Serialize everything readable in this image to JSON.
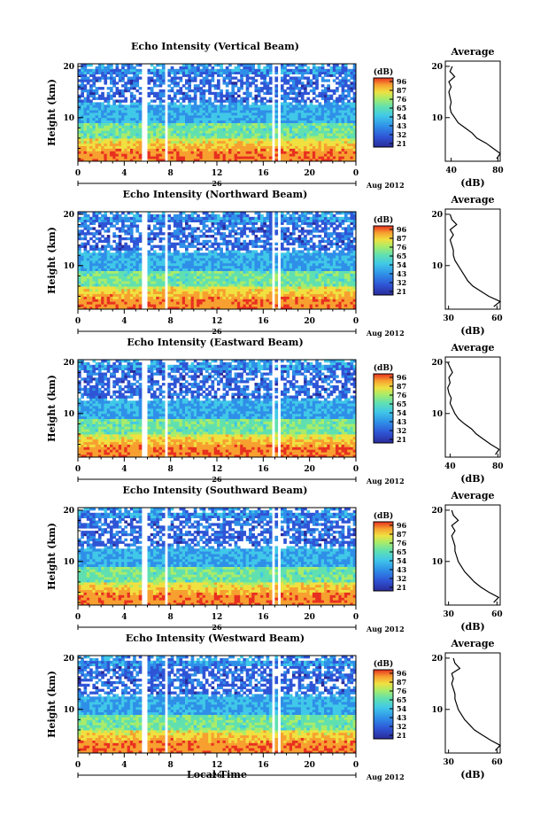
{
  "chart_data": {
    "type": "heatmap",
    "panels": [
      {
        "title": "Echo Intensity (Vertical Beam)",
        "cbar_label": "(dB)",
        "cbar_ticks": [
          "96",
          "87",
          "76",
          "65",
          "54",
          "43",
          "32",
          "21"
        ],
        "avg_title": "Average",
        "avg_xlabel": "(dB)",
        "avg_xticks": [
          "40",
          "80"
        ],
        "avg_xlim": [
          35,
          82
        ],
        "avg_profile": [
          [
            79,
            2
          ],
          [
            82,
            3
          ],
          [
            76,
            4
          ],
          [
            70,
            5
          ],
          [
            62,
            6
          ],
          [
            58,
            7
          ],
          [
            52,
            8
          ],
          [
            46,
            9
          ],
          [
            43,
            10
          ],
          [
            40,
            11
          ],
          [
            39,
            12
          ],
          [
            40,
            13
          ],
          [
            39,
            14
          ],
          [
            38,
            15
          ],
          [
            40,
            16
          ],
          [
            38,
            17
          ],
          [
            43,
            18
          ],
          [
            39,
            19
          ],
          [
            41,
            20
          ]
        ]
      },
      {
        "title": "Echo Intensity (Northward Beam)",
        "cbar_label": "(dB)",
        "cbar_ticks": [
          "96",
          "87",
          "76",
          "65",
          "54",
          "43",
          "32",
          "21"
        ],
        "avg_title": "Average",
        "avg_xlabel": "(dB)",
        "avg_xticks": [
          "30",
          "60"
        ],
        "avg_xlim": [
          28,
          62
        ],
        "avg_profile": [
          [
            58,
            2
          ],
          [
            62,
            3
          ],
          [
            55,
            4
          ],
          [
            50,
            5
          ],
          [
            45,
            6
          ],
          [
            42,
            7
          ],
          [
            40,
            8
          ],
          [
            38,
            9
          ],
          [
            36,
            10
          ],
          [
            34,
            11
          ],
          [
            33,
            12
          ],
          [
            33,
            13
          ],
          [
            32,
            14
          ],
          [
            31,
            15
          ],
          [
            33,
            16
          ],
          [
            31,
            17
          ],
          [
            35,
            18
          ],
          [
            32,
            19
          ],
          [
            31,
            20
          ]
        ]
      },
      {
        "title": "Echo Intensity (Eastward Beam)",
        "cbar_label": "(dB)",
        "cbar_ticks": [
          "96",
          "87",
          "76",
          "65",
          "54",
          "43",
          "32",
          "21"
        ],
        "avg_title": "Average",
        "avg_xlabel": "(dB)",
        "avg_xticks": [
          "40",
          "80"
        ],
        "avg_xlim": [
          36,
          82
        ],
        "avg_profile": [
          [
            78,
            2
          ],
          [
            81,
            3
          ],
          [
            74,
            4
          ],
          [
            68,
            5
          ],
          [
            62,
            6
          ],
          [
            58,
            7
          ],
          [
            52,
            8
          ],
          [
            47,
            9
          ],
          [
            44,
            10
          ],
          [
            42,
            11
          ],
          [
            40,
            12
          ],
          [
            41,
            13
          ],
          [
            39,
            14
          ],
          [
            38,
            15
          ],
          [
            40,
            16
          ],
          [
            39,
            17
          ],
          [
            42,
            18
          ],
          [
            40,
            19
          ],
          [
            38,
            20
          ]
        ]
      },
      {
        "title": "Echo Intensity (Southward Beam)",
        "cbar_label": "(dB)",
        "cbar_ticks": [
          "96",
          "87",
          "76",
          "65",
          "54",
          "43",
          "32",
          "21"
        ],
        "avg_title": "Average",
        "avg_xlabel": "(dB)",
        "avg_xticks": [
          "30",
          "60"
        ],
        "avg_xlim": [
          28,
          62
        ],
        "avg_profile": [
          [
            58,
            2
          ],
          [
            61,
            3
          ],
          [
            55,
            4
          ],
          [
            50,
            5
          ],
          [
            46,
            6
          ],
          [
            43,
            7
          ],
          [
            40,
            8
          ],
          [
            38,
            9
          ],
          [
            36,
            10
          ],
          [
            35,
            11
          ],
          [
            34,
            12
          ],
          [
            34,
            13
          ],
          [
            33,
            14
          ],
          [
            32,
            15
          ],
          [
            34,
            16
          ],
          [
            32,
            17
          ],
          [
            36,
            18
          ],
          [
            33,
            19
          ],
          [
            32,
            20
          ]
        ]
      },
      {
        "title": "Echo Intensity (Westward Beam)",
        "cbar_label": "(dB)",
        "cbar_ticks": [
          "96",
          "87",
          "76",
          "65",
          "54",
          "43",
          "32",
          "21"
        ],
        "avg_title": "Average",
        "avg_xlabel": "(dB)",
        "avg_xticks": [
          "30",
          "60"
        ],
        "avg_xlim": [
          28,
          62
        ],
        "avg_profile": [
          [
            59,
            2
          ],
          [
            62,
            3
          ],
          [
            56,
            4
          ],
          [
            51,
            5
          ],
          [
            46,
            6
          ],
          [
            43,
            7
          ],
          [
            40,
            8
          ],
          [
            38,
            9
          ],
          [
            36,
            10
          ],
          [
            35,
            11
          ],
          [
            34,
            12
          ],
          [
            34,
            13
          ],
          [
            33,
            14
          ],
          [
            32,
            15
          ],
          [
            33,
            16
          ],
          [
            32,
            17
          ],
          [
            37,
            18
          ],
          [
            34,
            19
          ],
          [
            33,
            20
          ]
        ]
      }
    ],
    "ylabel": "Height (km)",
    "yticks": [
      "20",
      "10"
    ],
    "ylim": [
      1.5,
      20.5
    ],
    "xticks": [
      "0",
      "4",
      "8",
      "12",
      "16",
      "20",
      "0"
    ],
    "xlim": [
      0,
      24
    ],
    "date_label": "26",
    "month_label": "Aug 2012",
    "xlabel": "Local Time",
    "data_gaps_hours": [
      [
        5.6,
        5.95
      ],
      [
        7.6,
        7.85
      ],
      [
        16.7,
        16.95
      ],
      [
        17.35,
        17.6
      ]
    ],
    "colorscale": [
      "#2a2a9a",
      "#2f55d6",
      "#2f8fe8",
      "#40c8e8",
      "#60e0b0",
      "#a8ec6a",
      "#f0e040",
      "#f7a030",
      "#e83020"
    ],
    "grid": false,
    "legend": "colorbar-right"
  }
}
